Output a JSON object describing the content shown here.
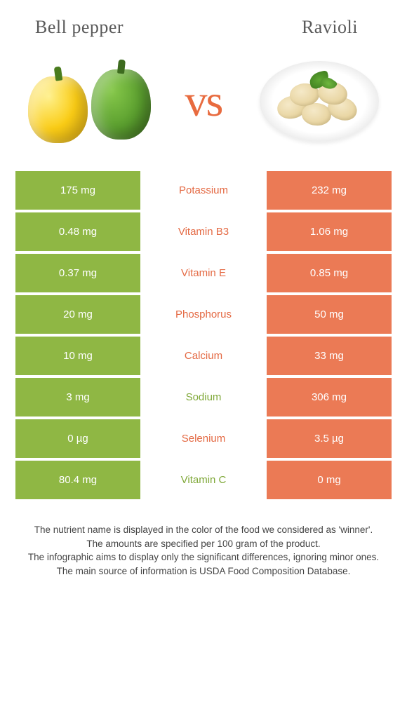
{
  "left_food": {
    "title": "Bell pepper"
  },
  "right_food": {
    "title": "Ravioli"
  },
  "vs_label": "vs",
  "colors": {
    "left_bg": "#8fb744",
    "right_bg": "#eb7a55",
    "left_text_win": "#7fa838",
    "right_text_win": "#e46a44",
    "mid_bg": "#ffffff"
  },
  "rows": [
    {
      "left": "175 mg",
      "label": "Potassium",
      "right": "232 mg",
      "winner": "right"
    },
    {
      "left": "0.48 mg",
      "label": "Vitamin B3",
      "right": "1.06 mg",
      "winner": "right"
    },
    {
      "left": "0.37 mg",
      "label": "Vitamin E",
      "right": "0.85 mg",
      "winner": "right"
    },
    {
      "left": "20 mg",
      "label": "Phosphorus",
      "right": "50 mg",
      "winner": "right"
    },
    {
      "left": "10 mg",
      "label": "Calcium",
      "right": "33 mg",
      "winner": "right"
    },
    {
      "left": "3 mg",
      "label": "Sodium",
      "right": "306 mg",
      "winner": "left"
    },
    {
      "left": "0 µg",
      "label": "Selenium",
      "right": "3.5 µg",
      "winner": "right"
    },
    {
      "left": "80.4 mg",
      "label": "Vitamin C",
      "right": "0 mg",
      "winner": "left"
    }
  ],
  "footer_lines": [
    "The nutrient name is displayed in the color of the food we considered as 'winner'.",
    "The amounts are specified per 100 gram of the product.",
    "The infographic aims to display only the significant differences, ignoring minor ones.",
    "The main source of information is USDA Food Composition Database."
  ]
}
